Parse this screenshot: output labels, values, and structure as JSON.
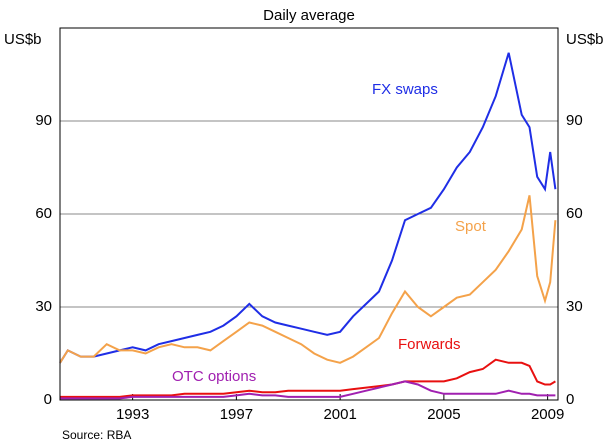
{
  "chart_data": {
    "type": "line",
    "subtitle": "Daily average",
    "y_label": "US$b",
    "y2_label": "US$b",
    "source": "Source: RBA",
    "x": [
      1990.2,
      1990.5,
      1991,
      1991.5,
      1992,
      1992.5,
      1993,
      1993.5,
      1994,
      1994.5,
      1995,
      1995.5,
      1996,
      1996.5,
      1997,
      1997.5,
      1998,
      1998.5,
      1999,
      1999.5,
      2000,
      2000.5,
      2001,
      2001.5,
      2002,
      2002.5,
      2003,
      2003.5,
      2004,
      2004.5,
      2005,
      2005.5,
      2006,
      2006.5,
      2007,
      2007.5,
      2008,
      2008.3,
      2008.6,
      2008.9,
      2009.1,
      2009.3
    ],
    "series": [
      {
        "name": "FX swaps",
        "color": "#1f2ee6",
        "values": [
          12,
          16,
          14,
          14,
          15,
          16,
          17,
          16,
          18,
          19,
          20,
          21,
          22,
          24,
          27,
          31,
          27,
          25,
          24,
          23,
          22,
          21,
          22,
          27,
          31,
          35,
          45,
          58,
          60,
          62,
          68,
          75,
          80,
          88,
          98,
          112,
          92,
          88,
          72,
          68,
          80,
          68
        ]
      },
      {
        "name": "Spot",
        "color": "#f4a24a",
        "values": [
          12,
          16,
          14,
          14,
          18,
          16,
          16,
          15,
          17,
          18,
          17,
          17,
          16,
          19,
          22,
          25,
          24,
          22,
          20,
          18,
          15,
          13,
          12,
          14,
          17,
          20,
          28,
          35,
          30,
          27,
          30,
          33,
          34,
          38,
          42,
          48,
          55,
          66,
          40,
          32,
          38,
          58
        ]
      },
      {
        "name": "Forwards",
        "color": "#e81010",
        "values": [
          1,
          1,
          1,
          1,
          1,
          1,
          1.5,
          1.5,
          1.5,
          1.5,
          2,
          2,
          2,
          2,
          2.5,
          3,
          2.5,
          2.5,
          3,
          3,
          3,
          3,
          3,
          3.5,
          4,
          4.5,
          5,
          6,
          6,
          6,
          6,
          7,
          9,
          10,
          13,
          12,
          12,
          11,
          6,
          5,
          5,
          6
        ]
      },
      {
        "name": "OTC options",
        "color": "#a020b0",
        "values": [
          0.5,
          0.5,
          0.5,
          0.5,
          0.5,
          0.5,
          1,
          1,
          1,
          1,
          1,
          1,
          1,
          1,
          1.5,
          2,
          1.5,
          1.5,
          1,
          1,
          1,
          1,
          1,
          2,
          3,
          4,
          5,
          6,
          5,
          3,
          2,
          2,
          2,
          2,
          2,
          3,
          2,
          2,
          1.5,
          1.5,
          1.5,
          1.5
        ]
      }
    ],
    "xlim": [
      1990.2,
      2009.4
    ],
    "xticks": [
      1993,
      1997,
      2001,
      2005,
      2009
    ],
    "ylim": [
      0,
      120
    ],
    "yticks": [
      0,
      30,
      60,
      90
    ],
    "grid": true
  }
}
